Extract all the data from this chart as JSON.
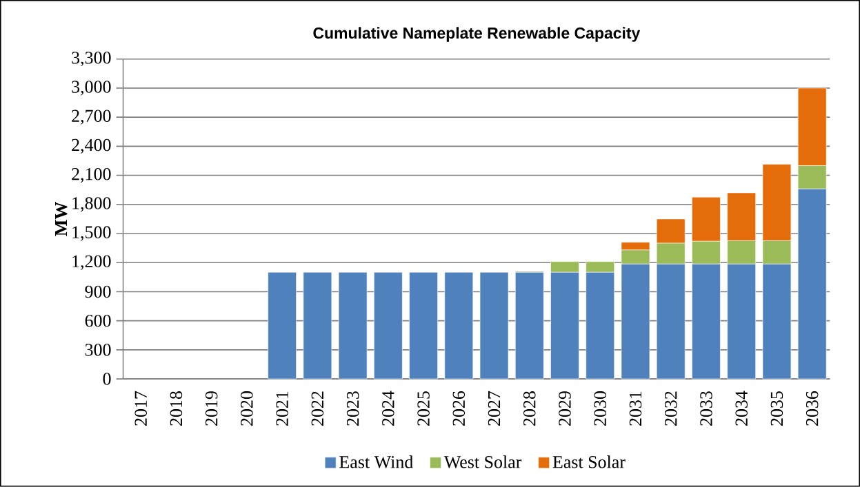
{
  "chart_data": {
    "type": "bar",
    "stacked": true,
    "title": "Cumulative Nameplate Renewable Capacity",
    "ylabel": "MW",
    "categories": [
      "2017",
      "2018",
      "2019",
      "2020",
      "2021",
      "2022",
      "2023",
      "2024",
      "2025",
      "2026",
      "2027",
      "2028",
      "2029",
      "2030",
      "2031",
      "2032",
      "2033",
      "2034",
      "2035",
      "2036"
    ],
    "series": [
      {
        "name": "East Wind",
        "color": "#4f81bd",
        "values": [
          0,
          0,
          0,
          0,
          1100,
          1100,
          1100,
          1100,
          1100,
          1100,
          1100,
          1100,
          1100,
          1100,
          1185,
          1185,
          1185,
          1185,
          1185,
          1960
        ]
      },
      {
        "name": "West Solar",
        "color": "#9bbb59",
        "values": [
          0,
          0,
          0,
          0,
          0,
          0,
          0,
          0,
          0,
          0,
          0,
          10,
          110,
          110,
          145,
          215,
          235,
          240,
          240,
          240
        ]
      },
      {
        "name": "East Solar",
        "color": "#e46c0a",
        "values": [
          0,
          0,
          0,
          0,
          0,
          0,
          0,
          0,
          0,
          0,
          0,
          0,
          0,
          0,
          80,
          250,
          455,
          495,
          790,
          800
        ]
      }
    ],
    "ylim": [
      0,
      3300
    ],
    "yticks": [
      0,
      300,
      600,
      900,
      {
        "value": 1200,
        "label": "1,200"
      },
      {
        "value": 1500,
        "label": "1,500"
      },
      {
        "value": 1800,
        "label": "1,800"
      },
      {
        "value": 2100,
        "label": "2,100"
      },
      {
        "value": 2400,
        "label": "2,400"
      },
      {
        "value": 2700,
        "label": "2,700"
      },
      {
        "value": 3000,
        "label": "3,000"
      },
      {
        "value": 3300,
        "label": "3,300"
      }
    ],
    "grid": "y",
    "legend": "bottom"
  }
}
